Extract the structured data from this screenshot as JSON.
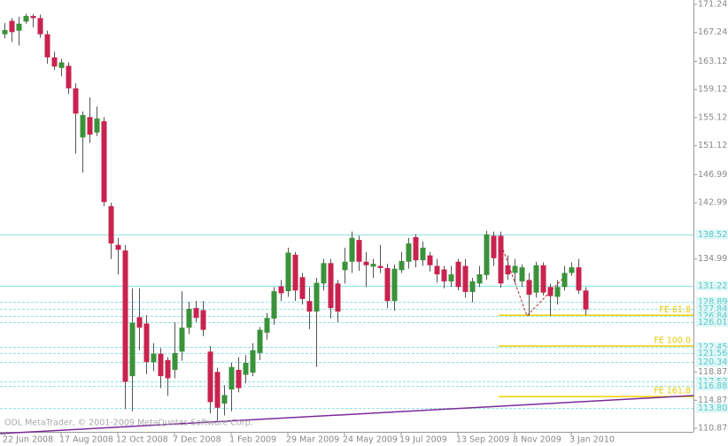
{
  "chart_data": {
    "type": "candlestick",
    "categories": [
      "22 Jun 2008",
      null,
      null,
      null,
      null,
      null,
      null,
      null,
      "17 Aug 2008",
      null,
      null,
      null,
      null,
      null,
      null,
      null,
      "12 Oct 2008",
      null,
      null,
      null,
      null,
      null,
      null,
      null,
      "7 Dec 2008",
      null,
      null,
      null,
      null,
      null,
      null,
      null,
      "1 Feb 2009",
      null,
      null,
      null,
      null,
      null,
      null,
      null,
      "29 Mar 2009",
      null,
      null,
      null,
      null,
      null,
      null,
      null,
      "24 May 2009",
      null,
      null,
      null,
      null,
      null,
      null,
      null,
      "19 Jul 2009",
      null,
      null,
      null,
      null,
      null,
      null,
      null,
      "13 Sep 2009",
      null,
      null,
      null,
      null,
      null,
      null,
      null,
      "8 Nov 2009",
      null,
      null,
      null,
      null,
      null,
      null,
      null,
      "3 Jan 2010",
      null,
      null
    ],
    "open": [
      167.0,
      168.9,
      167.5,
      168.8,
      169.6,
      169.3,
      167.0,
      163.7,
      162.2,
      162.5,
      159.3,
      152.3,
      155.2,
      153.0,
      154.6,
      142.5,
      137.0,
      136.2,
      118.3,
      126.7,
      125.8,
      120.3,
      121.5,
      120.6,
      119.2,
      121.8,
      125.2,
      128.0,
      127.7,
      121.8,
      118.9,
      114.4,
      116.4,
      119.2,
      118.5,
      118.8,
      121.6,
      124.5,
      126.5,
      131.1,
      130.4,
      135.6,
      132.4,
      129.0,
      127.5,
      131.5,
      134.4,
      131.5,
      133.4,
      134.6,
      137.7,
      134.6,
      133.9,
      134.0,
      133.7,
      129.0,
      133.4,
      134.6,
      138.1,
      134.8,
      135.5,
      134.0,
      133.5,
      131.8,
      134.6,
      134.0,
      130.3,
      131.5,
      132.7,
      138.3,
      138.3,
      134.1,
      133.0,
      131.8,
      132.0,
      130.2,
      134.1,
      131.0,
      129.6,
      131.0,
      133.0,
      133.8,
      130.5
    ],
    "high": [
      168.6,
      169.3,
      169.5,
      169.9,
      169.9,
      169.8,
      167.5,
      164.5,
      163.5,
      163.0,
      160.0,
      156.0,
      158.0,
      156.7,
      155.2,
      143.0,
      138.0,
      137.0,
      130.8,
      130.8,
      127.0,
      123.0,
      122.3,
      121.0,
      126.0,
      130.4,
      128.9,
      129.0,
      129.0,
      122.6,
      119.5,
      117.0,
      120.2,
      121.0,
      121.3,
      123.0,
      125.3,
      127.3,
      131.0,
      132.0,
      136.6,
      136.0,
      133.0,
      131.0,
      132.3,
      135.0,
      135.0,
      132.0,
      136.6,
      138.9,
      138.3,
      136.0,
      135.0,
      137.0,
      134.3,
      134.2,
      136.0,
      138.0,
      138.5,
      137.5,
      136.0,
      135.0,
      134.0,
      134.0,
      135.0,
      135.0,
      132.3,
      134.0,
      139.0,
      138.9,
      138.9,
      135.5,
      135.0,
      134.2,
      133.0,
      134.6,
      134.5,
      131.5,
      132.0,
      134.0,
      134.5,
      135.0,
      131.0
    ],
    "low": [
      166.4,
      165.9,
      165.4,
      168.5,
      168.0,
      166.5,
      162.8,
      161.9,
      161.0,
      158.5,
      150.0,
      147.3,
      151.5,
      152.5,
      142.5,
      135.0,
      132.8,
      113.6,
      113.3,
      122.0,
      118.6,
      119.0,
      116.6,
      115.5,
      118.0,
      120.5,
      124.3,
      126.0,
      124.0,
      113.0,
      112.0,
      112.7,
      113.3,
      116.0,
      117.3,
      118.3,
      120.6,
      123.5,
      125.6,
      129.0,
      129.6,
      129.0,
      128.5,
      125.0,
      119.6,
      130.5,
      126.5,
      126.0,
      131.5,
      133.0,
      133.3,
      131.0,
      132.3,
      133.0,
      128.0,
      127.6,
      133.0,
      133.6,
      133.8,
      134.0,
      133.2,
      131.6,
      130.8,
      131.0,
      130.5,
      129.5,
      128.8,
      131.0,
      132.0,
      134.0,
      130.9,
      132.0,
      131.5,
      131.0,
      126.9,
      129.5,
      129.8,
      126.9,
      128.5,
      130.5,
      132.6,
      130.0,
      127.0
    ],
    "close": [
      167.6,
      167.3,
      168.5,
      169.6,
      169.3,
      167.0,
      163.7,
      162.4,
      163.0,
      159.3,
      155.7,
      155.5,
      152.7,
      155.0,
      143.1,
      137.2,
      136.3,
      117.5,
      125.9,
      125.2,
      120.3,
      121.5,
      118.3,
      118.0,
      121.6,
      125.2,
      127.9,
      126.6,
      124.9,
      114.6,
      113.8,
      115.6,
      119.6,
      116.6,
      120.2,
      122.0,
      124.9,
      126.6,
      130.4,
      130.1,
      135.9,
      130.5,
      129.3,
      127.5,
      131.6,
      134.4,
      128.0,
      127.5,
      134.6,
      138.0,
      134.6,
      134.1,
      134.3,
      133.7,
      129.0,
      133.6,
      134.7,
      137.2,
      134.8,
      136.6,
      134.1,
      132.8,
      131.8,
      132.8,
      131.0,
      130.3,
      131.8,
      132.8,
      138.5,
      135.1,
      131.5,
      132.8,
      134.0,
      133.8,
      129.9,
      134.1,
      130.2,
      129.7,
      131.0,
      133.0,
      133.8,
      130.5,
      127.8
    ],
    "up_color": "#3a923a",
    "down_color": "#c8234f",
    "ylim": [
      110.37,
      171.875
    ],
    "yticks": [
      171.245,
      167.245,
      {
        "value": 163.12,
        "label": "163.120"
      },
      {
        "value": 159.12,
        "label": "159.120"
      },
      {
        "value": 155.12,
        "label": "155.120"
      },
      {
        "value": 151.12,
        "label": "151.120"
      },
      146.995,
      142.995,
      134.995,
      {
        "value": 118.87,
        "label": "118.870"
      },
      {
        "value": 114.87,
        "label": "114.870"
      },
      {
        "value": 110.87,
        "label": "110.870"
      }
    ],
    "levels": [
      {
        "value": 138.523,
        "label": "138.523",
        "style": "solid"
      },
      {
        "value": 131.221,
        "label": "131.221",
        "style": "solid"
      },
      {
        "value": 128.895,
        "label": "128.895",
        "style": "dashed"
      },
      {
        "value": 127.845,
        "label": "127.845",
        "style": "dashed"
      },
      {
        "value": 126.848,
        "label": "126.848",
        "style": "dashed"
      },
      {
        "value": 126.015,
        "label": "126.015",
        "style": "dashed"
      },
      {
        "value": 122.45,
        "label": "122.450",
        "style": "dashed"
      },
      {
        "value": 121.56,
        "label": "121.560",
        "style": "dashed"
      },
      {
        "value": 120.345,
        "label": "120.345",
        "style": "dashed"
      },
      {
        "value": 117.525,
        "label": "117.525",
        "style": "dashed"
      },
      {
        "value": 116.883,
        "label": "116.883",
        "style": "dashed"
      },
      {
        "value": 113.803,
        "label": "113.803",
        "style": "dashed"
      }
    ],
    "fe_levels": [
      {
        "value": 126.97,
        "label": "FE 61.8"
      },
      {
        "value": 122.6,
        "label": "FE 100.0"
      },
      {
        "value": 115.4,
        "label": "FE 161.8"
      }
    ],
    "footer": "ODL MetaTrader, © 2001-2009 MetaQuotes Software Corp."
  }
}
